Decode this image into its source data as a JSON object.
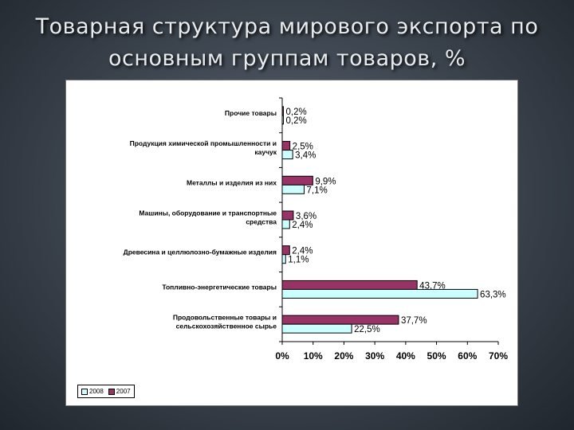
{
  "slide": {
    "title": "Товарная структура мирового экспорта по основным группам товаров, %"
  },
  "chart_data": {
    "type": "bar",
    "orientation": "horizontal",
    "categories": [
      "Прочие товары",
      "Продукция химической промышленности и каучук",
      "Металлы и изделия из них",
      "Машины, оборудование и транспортные средства",
      "Древесина и целлюлозно-бумажные изделия",
      "Топливно-энергетические товары",
      "Продовольственные товары и сельскохозяйственное сырье"
    ],
    "category_lines": [
      [
        "Прочие товары"
      ],
      [
        "Продукция химической промышленности и",
        "каучук"
      ],
      [
        "Металлы и изделия из них"
      ],
      [
        "Машины, оборудование и транспортные",
        "средства"
      ],
      [
        "Древесина и целлюлозно-бумажные изделия"
      ],
      [
        "Топливно-энергетические товары"
      ],
      [
        "Продовольственные товары и",
        "сельскохозяйственное сырье"
      ]
    ],
    "series": [
      {
        "name": "2007",
        "color": "#993366",
        "values": [
          0.2,
          2.5,
          9.9,
          3.6,
          2.4,
          43.7,
          37.7
        ],
        "labels": [
          "0,2%",
          "2,5%",
          "9,9%",
          "3,6%",
          "2,4%",
          "43,7%",
          "37,7%"
        ]
      },
      {
        "name": "2008",
        "color": "#ccffff",
        "values": [
          0.2,
          3.4,
          7.1,
          2.4,
          1.1,
          63.3,
          22.5
        ],
        "labels": [
          "0,2%",
          "3,4%",
          "7,1%",
          "2,4%",
          "1,1%",
          "63,3%",
          "22,5%"
        ]
      }
    ],
    "xlim": [
      0,
      70
    ],
    "xticks": [
      "0%",
      "10%",
      "20%",
      "30%",
      "40%",
      "50%",
      "60%",
      "70%"
    ],
    "grid": false,
    "legend": {
      "placement": "bottom-left",
      "items": [
        "2008",
        "2007"
      ]
    }
  }
}
